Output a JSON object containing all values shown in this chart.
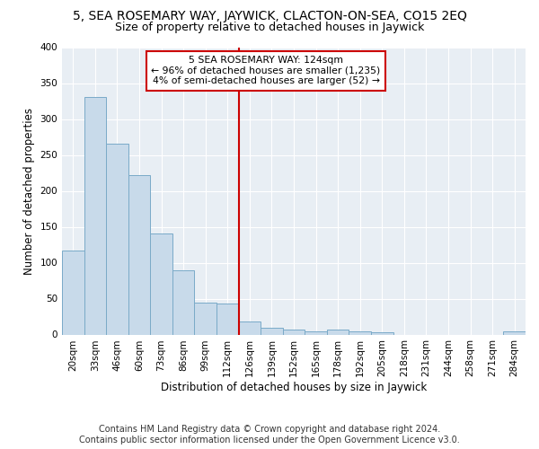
{
  "title": "5, SEA ROSEMARY WAY, JAYWICK, CLACTON-ON-SEA, CO15 2EQ",
  "subtitle": "Size of property relative to detached houses in Jaywick",
  "xlabel": "Distribution of detached houses by size in Jaywick",
  "ylabel": "Number of detached properties",
  "categories": [
    "20sqm",
    "33sqm",
    "46sqm",
    "60sqm",
    "73sqm",
    "86sqm",
    "99sqm",
    "112sqm",
    "126sqm",
    "139sqm",
    "152sqm",
    "165sqm",
    "178sqm",
    "192sqm",
    "205sqm",
    "218sqm",
    "231sqm",
    "244sqm",
    "258sqm",
    "271sqm",
    "284sqm"
  ],
  "values": [
    117,
    331,
    266,
    222,
    141,
    90,
    45,
    43,
    18,
    10,
    7,
    5,
    7,
    4,
    3,
    0,
    0,
    0,
    0,
    0,
    5
  ],
  "bar_color": "#c8daea",
  "bar_edge_color": "#7aaac8",
  "highlight_label": "5 SEA ROSEMARY WAY: 124sqm",
  "annotation_line1": "← 96% of detached houses are smaller (1,235)",
  "annotation_line2": "4% of semi-detached houses are larger (52) →",
  "annotation_box_color": "#ffffff",
  "annotation_box_edge": "#cc0000",
  "vline_color": "#cc0000",
  "vline_x_index": 8,
  "footer1": "Contains HM Land Registry data © Crown copyright and database right 2024.",
  "footer2": "Contains public sector information licensed under the Open Government Licence v3.0.",
  "ylim": [
    0,
    400
  ],
  "background_color": "#ffffff",
  "plot_bg_color": "#e8eef4",
  "grid_color": "#ffffff",
  "title_fontsize": 10,
  "subtitle_fontsize": 9,
  "axis_label_fontsize": 8.5,
  "tick_fontsize": 7.5,
  "footer_fontsize": 7
}
